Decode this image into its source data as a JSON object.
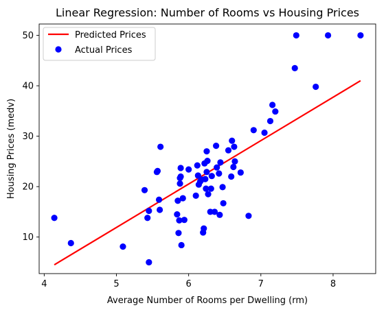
{
  "chart_data": {
    "type": "scatter",
    "title": "Linear Regression: Number of Rooms vs Housing Prices",
    "xlabel": "Average Number of Rooms per Dwelling (rm)",
    "ylabel": "Housing Prices (medv)",
    "xlim": [
      3.93,
      8.59
    ],
    "ylim": [
      2.75,
      52.25
    ],
    "xticks": [
      4,
      5,
      6,
      7,
      8
    ],
    "yticks": [
      10,
      20,
      30,
      40,
      50
    ],
    "grid": false,
    "legend_position": "top-left",
    "colors": {
      "line": "#ff0000",
      "points": "#0000ff"
    },
    "series": [
      {
        "name": "Predicted Prices",
        "kind": "line",
        "x": [
          4.14,
          8.38
        ],
        "y": [
          4.5,
          41.0
        ]
      },
      {
        "name": "Actual Prices",
        "kind": "scatter",
        "points": [
          [
            4.14,
            13.8
          ],
          [
            4.37,
            8.8
          ],
          [
            5.09,
            8.1
          ],
          [
            5.39,
            19.3
          ],
          [
            5.43,
            13.8
          ],
          [
            5.45,
            15.2
          ],
          [
            5.45,
            5.0
          ],
          [
            5.56,
            22.9
          ],
          [
            5.57,
            23.1
          ],
          [
            5.59,
            17.4
          ],
          [
            5.6,
            15.4
          ],
          [
            5.61,
            27.9
          ],
          [
            5.84,
            14.5
          ],
          [
            5.85,
            17.2
          ],
          [
            5.86,
            10.8
          ],
          [
            5.87,
            13.3
          ],
          [
            5.88,
            20.6
          ],
          [
            5.88,
            21.7
          ],
          [
            5.89,
            22.0
          ],
          [
            5.89,
            23.7
          ],
          [
            5.9,
            8.4
          ],
          [
            5.92,
            17.7
          ],
          [
            5.94,
            13.4
          ],
          [
            6.0,
            23.4
          ],
          [
            6.1,
            18.2
          ],
          [
            6.12,
            24.2
          ],
          [
            6.13,
            22.2
          ],
          [
            6.14,
            20.4
          ],
          [
            6.16,
            21.0
          ],
          [
            6.18,
            21.4
          ],
          [
            6.2,
            10.9
          ],
          [
            6.21,
            11.7
          ],
          [
            6.22,
            24.6
          ],
          [
            6.23,
            21.5
          ],
          [
            6.24,
            19.6
          ],
          [
            6.25,
            27.0
          ],
          [
            6.25,
            22.9
          ],
          [
            6.26,
            25.1
          ],
          [
            6.27,
            18.5
          ],
          [
            6.3,
            15.0
          ],
          [
            6.31,
            19.6
          ],
          [
            6.32,
            22.1
          ],
          [
            6.36,
            15.0
          ],
          [
            6.38,
            28.1
          ],
          [
            6.39,
            23.8
          ],
          [
            6.42,
            22.6
          ],
          [
            6.43,
            14.4
          ],
          [
            6.44,
            24.8
          ],
          [
            6.47,
            19.9
          ],
          [
            6.48,
            16.7
          ],
          [
            6.55,
            27.2
          ],
          [
            6.59,
            22.0
          ],
          [
            6.6,
            29.1
          ],
          [
            6.62,
            23.9
          ],
          [
            6.63,
            27.9
          ],
          [
            6.64,
            25.0
          ],
          [
            6.72,
            22.8
          ],
          [
            6.83,
            14.2
          ],
          [
            6.9,
            31.2
          ],
          [
            7.05,
            30.7
          ],
          [
            7.13,
            33.0
          ],
          [
            7.16,
            36.2
          ],
          [
            7.2,
            34.9
          ],
          [
            7.47,
            43.5
          ],
          [
            7.49,
            50.0
          ],
          [
            7.76,
            39.8
          ],
          [
            7.93,
            50.0
          ],
          [
            8.38,
            50.0
          ]
        ]
      }
    ]
  }
}
